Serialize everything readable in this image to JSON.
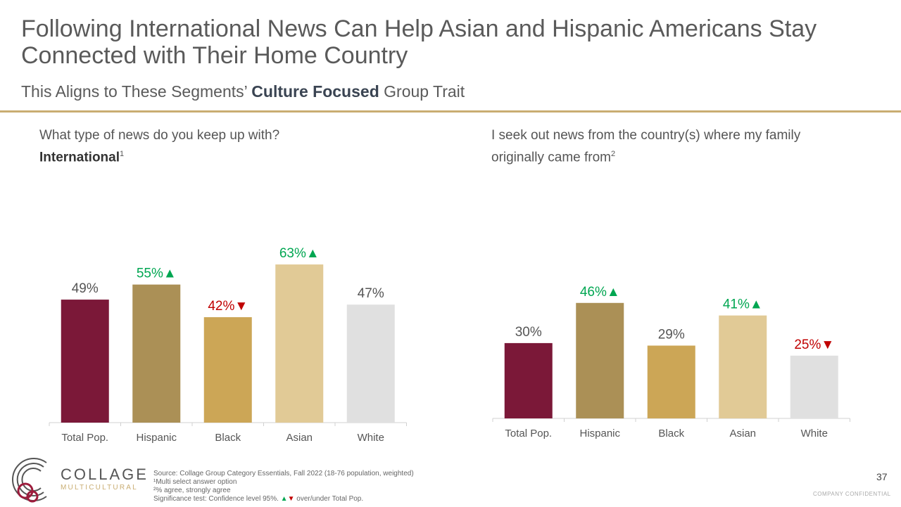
{
  "header": {
    "title": "Following International News Can Help Asian and Hispanic Americans Stay Connected with Their Home Country",
    "subtitle_pre": "This Aligns to These Segments’ ",
    "subtitle_bold": "Culture Focused",
    "subtitle_post": " Group Trait"
  },
  "colors": {
    "up": "#00a651",
    "down": "#c00000",
    "bars": [
      "#7b1838",
      "#ab9056",
      "#cca656",
      "#e1ca96",
      "#e0e0e0"
    ],
    "rule": "#c9ad72"
  },
  "chart_data": [
    {
      "type": "bar",
      "title": "What type of news do you keep up with?",
      "subtitle": "International",
      "subtitle_sup": "1",
      "categories": [
        "Total Pop.",
        "Hispanic",
        "Black",
        "Asian",
        "White"
      ],
      "values": [
        49,
        55,
        42,
        63,
        47
      ],
      "labels": [
        "49%",
        "55%",
        "42%",
        "63%",
        "47%"
      ],
      "significance": [
        "",
        "up",
        "down",
        "up",
        ""
      ],
      "ylim": [
        0,
        70
      ]
    },
    {
      "type": "bar",
      "title": "I seek out news from the country(s) where my family originally came from",
      "subtitle_sup": "2",
      "categories": [
        "Total Pop.",
        "Hispanic",
        "Black",
        "Asian",
        "White"
      ],
      "values": [
        30,
        46,
        29,
        41,
        25
      ],
      "labels": [
        "30%",
        "46%",
        "29%",
        "41%",
        "25%"
      ],
      "significance": [
        "",
        "up",
        "",
        "up",
        "down"
      ],
      "ylim": [
        0,
        70
      ]
    }
  ],
  "footer": {
    "source": "Source: Collage Group Category Essentials, Fall 2022 (18-76 population, weighted)",
    "note1": "¹Multi select answer option",
    "note2": "²% agree, strongly agree",
    "sig_pre": "Significance test: Confidence level 95%. ",
    "sig_up": "▲",
    "sig_down": "▼",
    "sig_post": " over/under Total Pop.",
    "page": "37",
    "confidential": "COMPANY CONFIDENTIAL",
    "logo_word": "COLLAGE",
    "logo_sub": "MULTICULTURAL"
  }
}
